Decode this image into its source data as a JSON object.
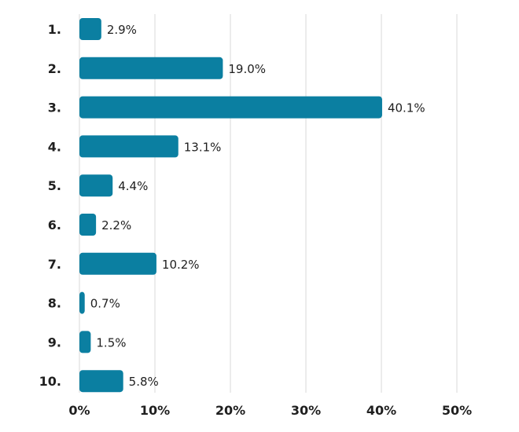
{
  "chart_data": {
    "type": "bar",
    "orientation": "horizontal",
    "categories": [
      "1.",
      "2.",
      "3.",
      "4.",
      "5.",
      "6.",
      "7.",
      "8.",
      "9.",
      "10."
    ],
    "values": [
      2.9,
      19.0,
      40.1,
      13.1,
      4.4,
      2.2,
      10.2,
      0.7,
      1.5,
      5.8
    ],
    "value_labels": [
      "2.9%",
      "19.0%",
      "40.1%",
      "13.1%",
      "4.4%",
      "2.2%",
      "10.2%",
      "0.7%",
      "1.5%",
      "5.8%"
    ],
    "xlim": [
      0,
      50
    ],
    "x_ticks": [
      0,
      10,
      20,
      30,
      40,
      50
    ],
    "x_tick_labels": [
      "0%",
      "10%",
      "20%",
      "30%",
      "40%",
      "50%"
    ],
    "grid": "vertical",
    "legend": "none",
    "bar_color": "#0b7fa1"
  }
}
